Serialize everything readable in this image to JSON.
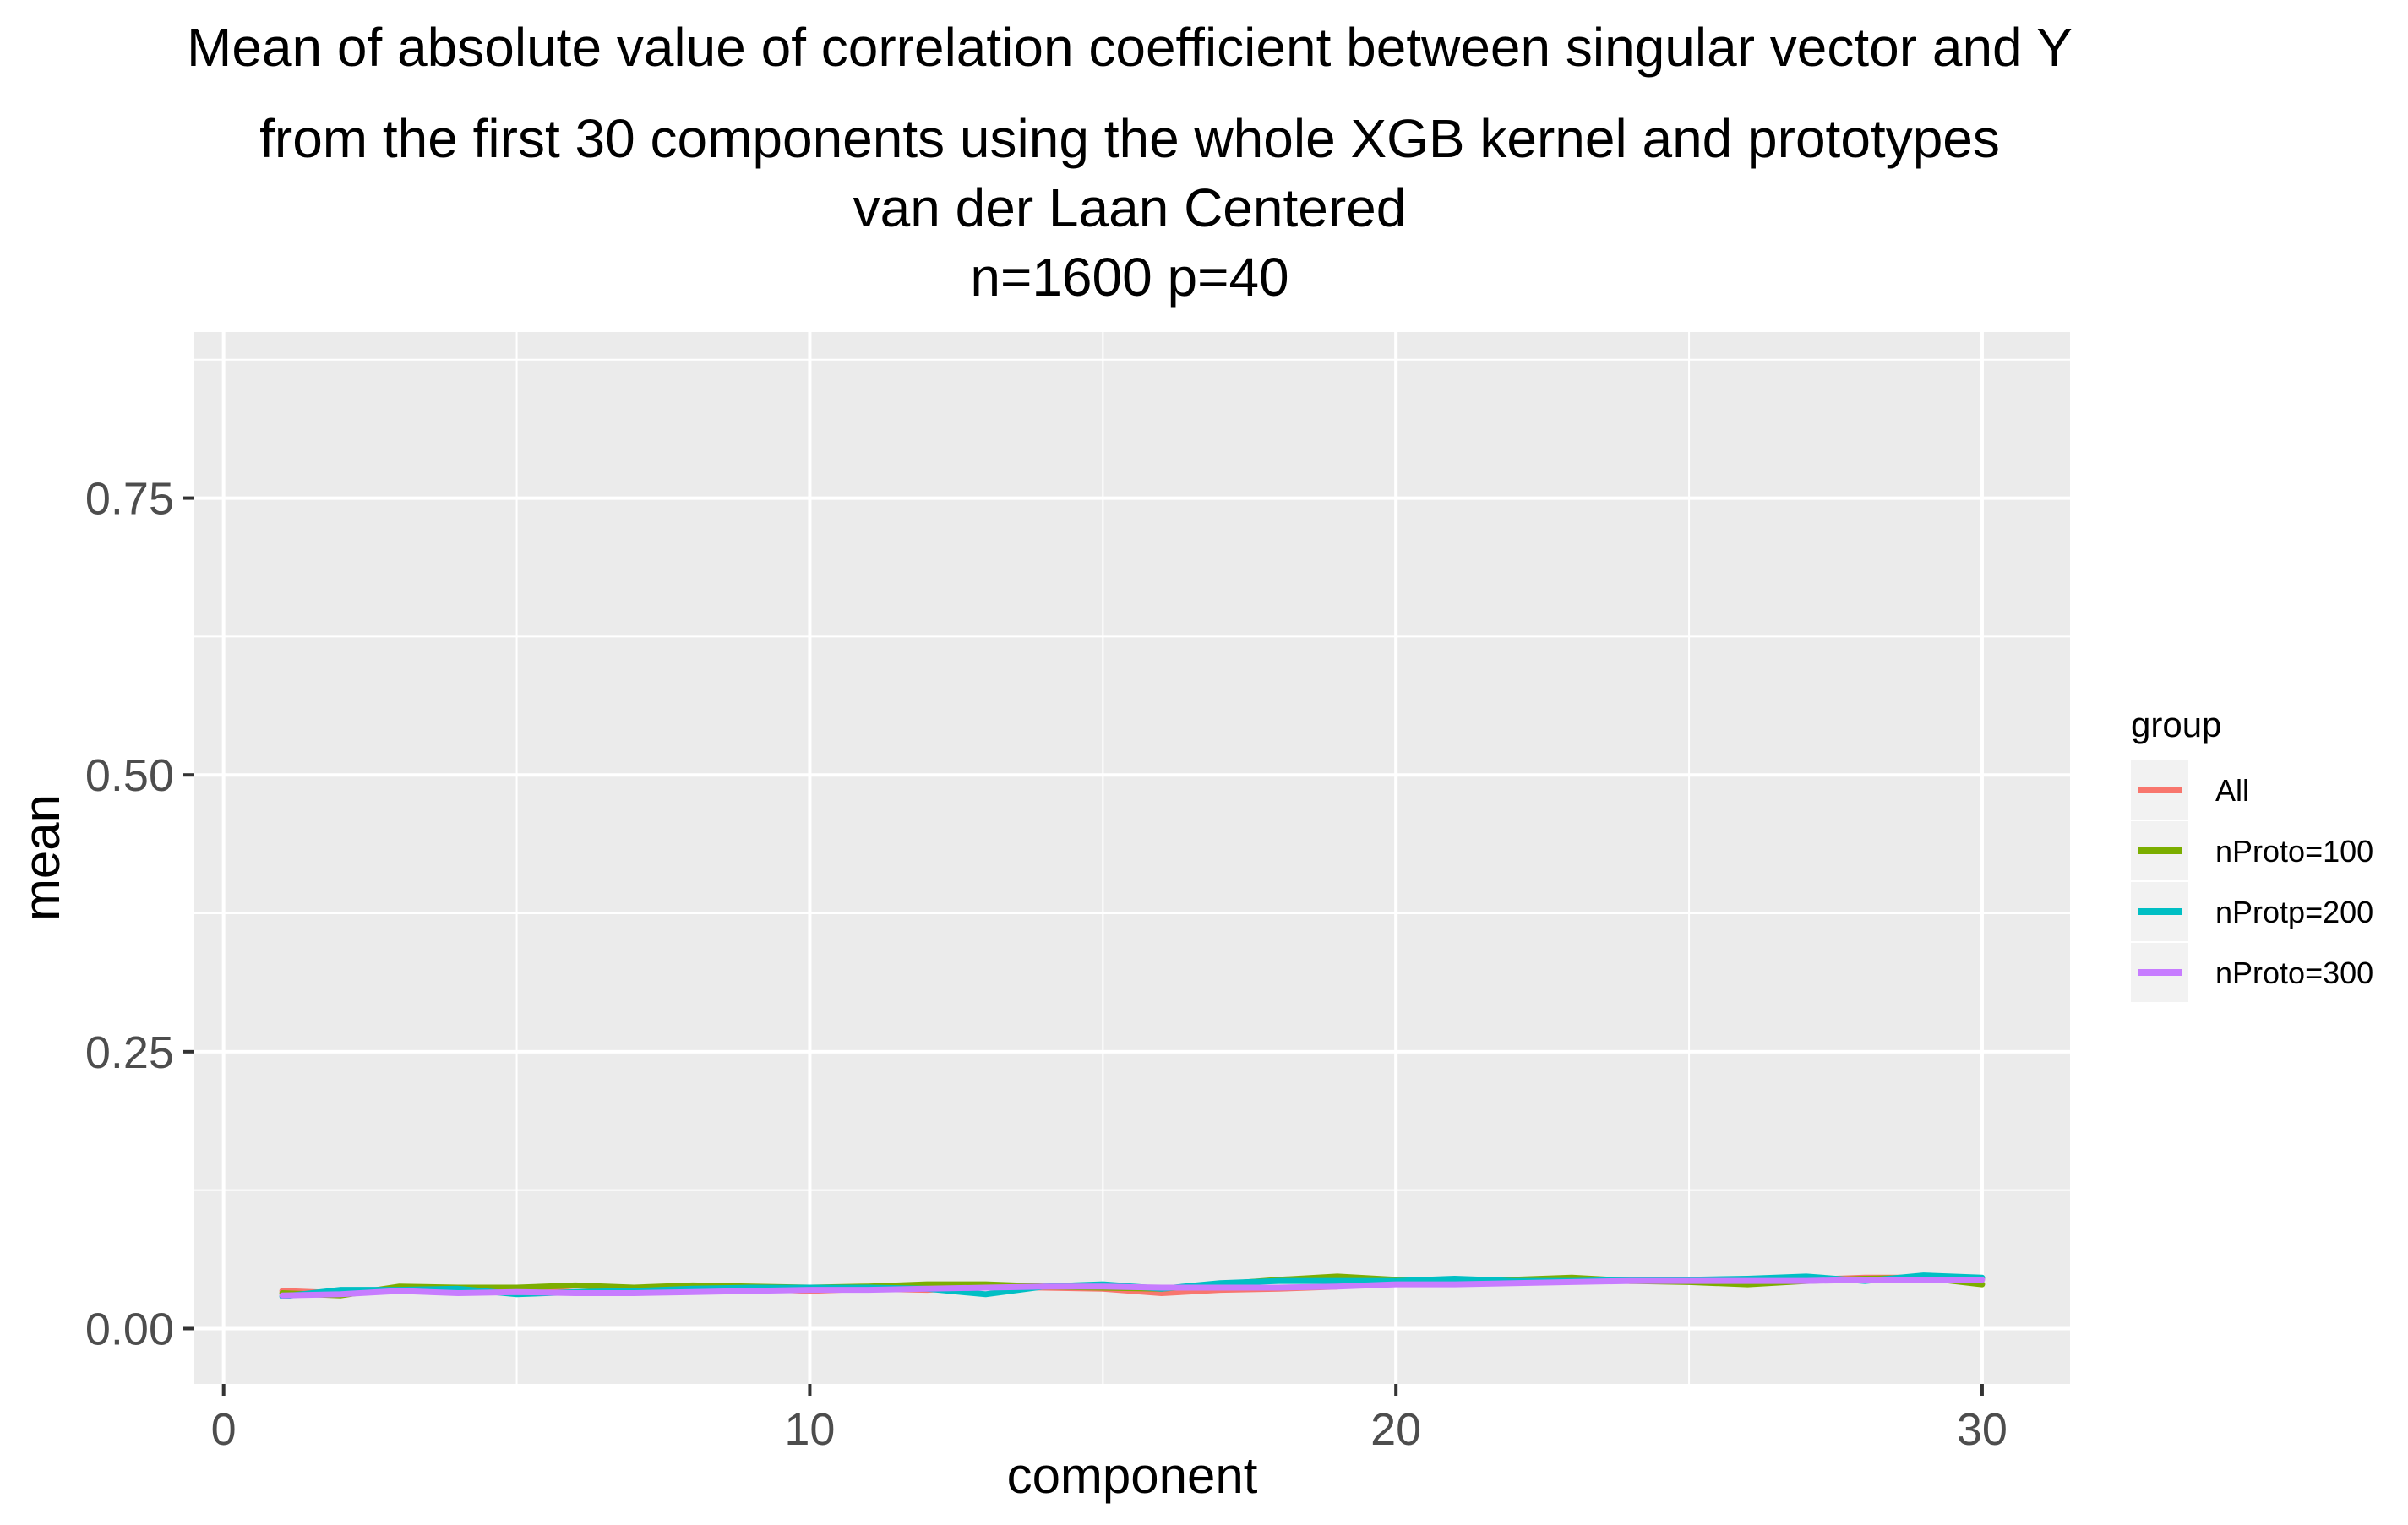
{
  "chart_data": {
    "type": "line",
    "title_lines": [
      "Mean of absolute value of correlation coefficient between singular vector and Y",
      "from the first 30 components using the whole XGB kernel and prototypes",
      "van der Laan Centered",
      "n=1600 p=40"
    ],
    "xlabel": "component",
    "ylabel": "mean",
    "xlim": [
      -0.5,
      31.5
    ],
    "ylim": [
      -0.05,
      0.9
    ],
    "x_ticks": [
      0,
      10,
      20,
      30
    ],
    "x_tick_labels": [
      "0",
      "10",
      "20",
      "30"
    ],
    "y_ticks": [
      0,
      0.25,
      0.5,
      0.75
    ],
    "y_tick_labels": [
      "0.00",
      "0.25",
      "0.50",
      "0.75"
    ],
    "grid": true,
    "legend": {
      "title": "group",
      "position": "right"
    },
    "x": [
      1,
      2,
      3,
      4,
      5,
      6,
      7,
      8,
      9,
      10,
      11,
      12,
      13,
      14,
      15,
      16,
      17,
      18,
      19,
      20,
      21,
      22,
      23,
      24,
      25,
      26,
      27,
      28,
      29,
      30
    ],
    "series": [
      {
        "name": "All",
        "color": "#F8766D",
        "values": [
          0.034,
          0.032,
          0.035,
          0.034,
          0.035,
          0.033,
          0.034,
          0.035,
          0.036,
          0.034,
          0.036,
          0.035,
          0.038,
          0.037,
          0.036,
          0.032,
          0.035,
          0.036,
          0.038,
          0.043,
          0.042,
          0.042,
          0.044,
          0.043,
          0.044,
          0.044,
          0.044,
          0.046,
          0.046,
          0.045
        ]
      },
      {
        "name": "nProto=100",
        "color": "#7CAE00",
        "values": [
          0.032,
          0.03,
          0.038,
          0.037,
          0.037,
          0.039,
          0.037,
          0.039,
          0.038,
          0.037,
          0.038,
          0.04,
          0.04,
          0.038,
          0.037,
          0.036,
          0.04,
          0.044,
          0.047,
          0.044,
          0.042,
          0.044,
          0.046,
          0.043,
          0.042,
          0.04,
          0.043,
          0.045,
          0.046,
          0.04
        ]
      },
      {
        "name": "nProtp=200",
        "color": "#00BFC4",
        "values": [
          0.029,
          0.035,
          0.035,
          0.036,
          0.031,
          0.033,
          0.034,
          0.036,
          0.037,
          0.037,
          0.037,
          0.036,
          0.031,
          0.038,
          0.04,
          0.036,
          0.041,
          0.043,
          0.043,
          0.043,
          0.045,
          0.043,
          0.043,
          0.044,
          0.044,
          0.045,
          0.047,
          0.043,
          0.048,
          0.046
        ]
      },
      {
        "name": "nProto=300",
        "color": "#C77CFF",
        "values": [
          0.03,
          0.031,
          0.034,
          0.032,
          0.033,
          0.032,
          0.032,
          0.033,
          0.034,
          0.035,
          0.035,
          0.036,
          0.037,
          0.038,
          0.038,
          0.037,
          0.037,
          0.037,
          0.038,
          0.04,
          0.04,
          0.041,
          0.042,
          0.043,
          0.043,
          0.043,
          0.043,
          0.044,
          0.044,
          0.044
        ]
      }
    ]
  }
}
